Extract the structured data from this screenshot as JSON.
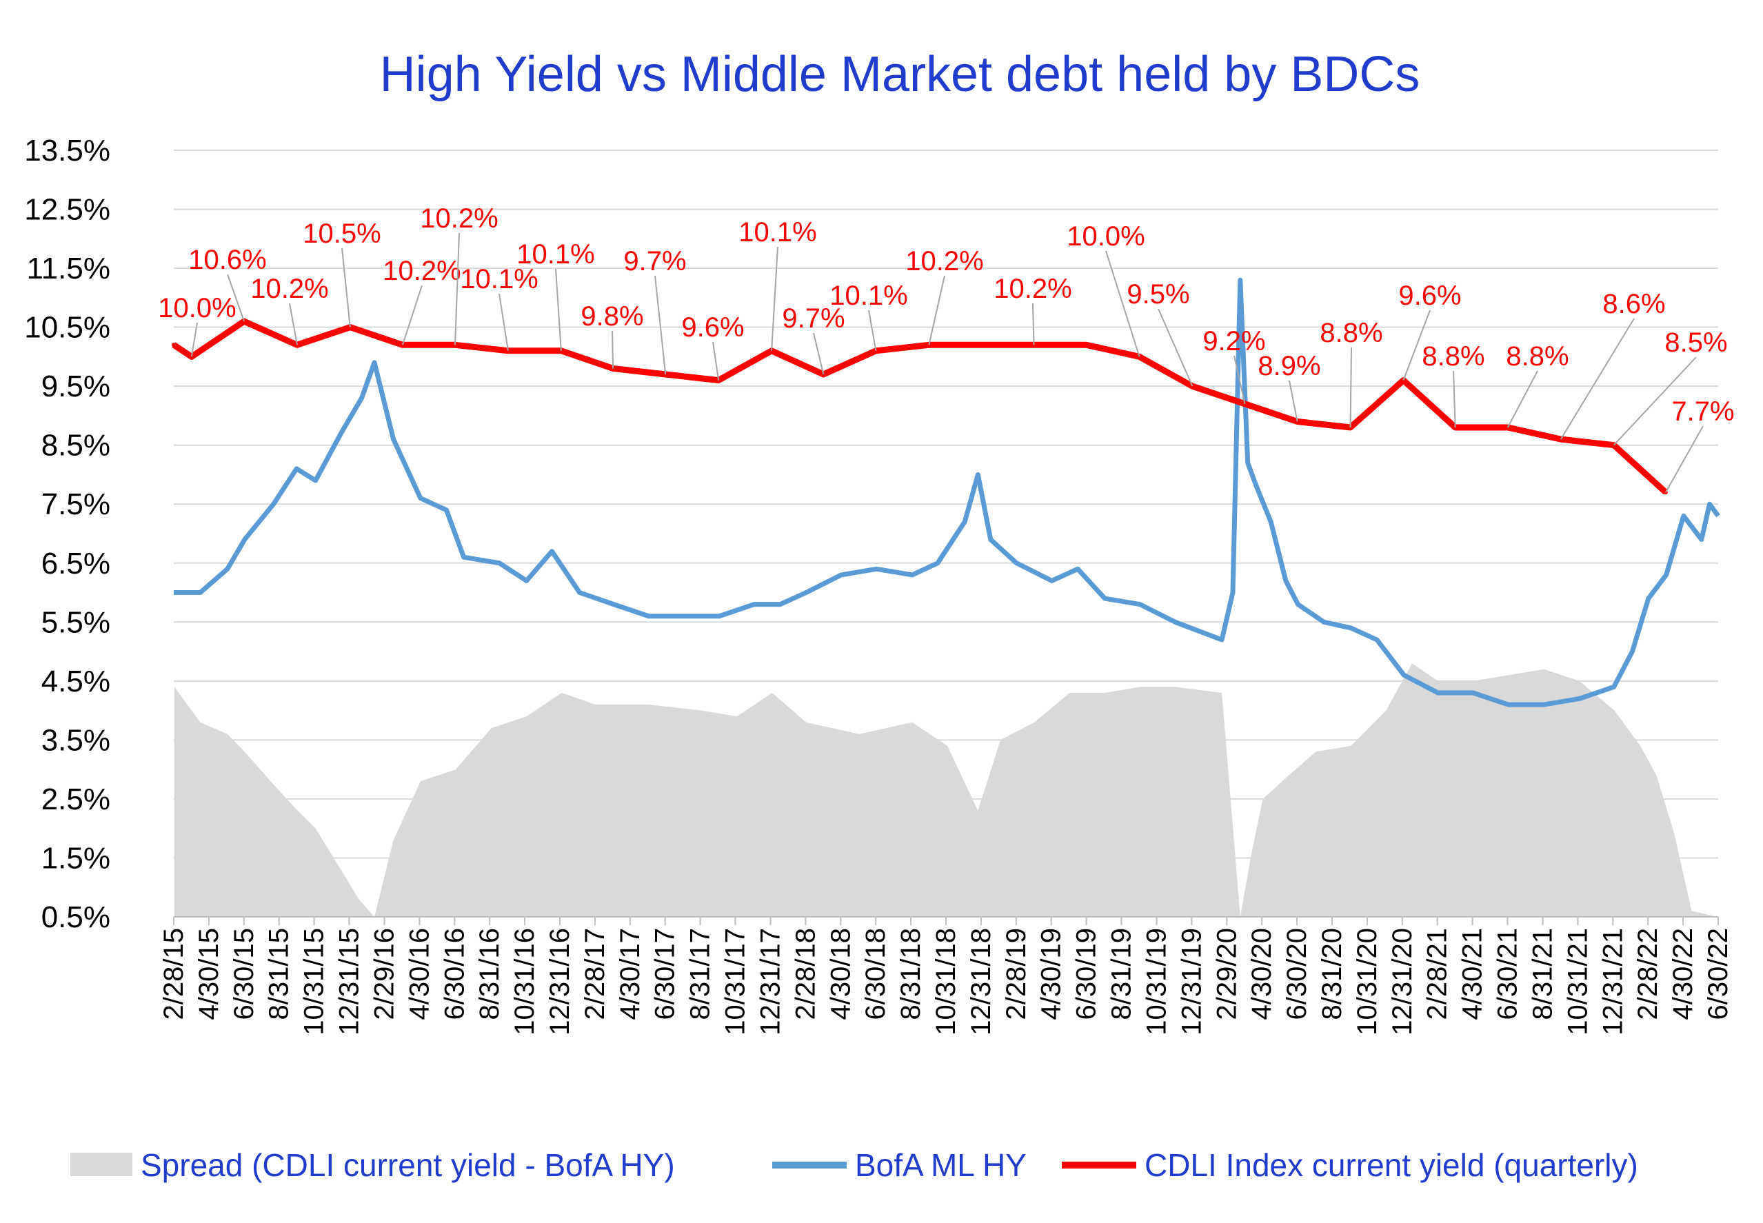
{
  "chart_data": {
    "type": "line",
    "title": "High Yield  vs  Middle Market debt held by BDCs",
    "xlabel": "",
    "ylabel": "",
    "ylim": [
      0.5,
      13.5
    ],
    "grid": true,
    "legend_position": "bottom",
    "y_ticks": [
      "13.5%",
      "12.5%",
      "11.5%",
      "10.5%",
      "9.5%",
      "8.5%",
      "7.5%",
      "6.5%",
      "5.5%",
      "4.5%",
      "3.5%",
      "2.5%",
      "1.5%",
      "0.5%"
    ],
    "x_ticks": [
      "2/28/15",
      "4/30/15",
      "6/30/15",
      "8/31/15",
      "10/31/15",
      "12/31/15",
      "2/29/16",
      "4/30/16",
      "6/30/16",
      "8/31/16",
      "10/31/16",
      "12/31/16",
      "2/28/17",
      "4/30/17",
      "6/30/17",
      "8/31/17",
      "10/31/17",
      "12/31/17",
      "2/28/18",
      "4/30/18",
      "6/30/18",
      "8/31/18",
      "10/31/18",
      "12/31/18",
      "2/28/19",
      "4/30/19",
      "6/30/19",
      "8/31/19",
      "10/31/19",
      "12/31/19",
      "2/29/20",
      "4/30/20",
      "6/30/20",
      "8/31/20",
      "10/31/20",
      "12/31/20",
      "2/28/21",
      "4/30/21",
      "6/30/21",
      "8/31/21",
      "10/31/21",
      "12/31/21",
      "2/28/22",
      "4/30/22",
      "6/30/22"
    ],
    "x_range": [
      "2015-02-28",
      "2022-06-30"
    ],
    "series": [
      {
        "name": "Spread (CDLI current yield - BofA HY)",
        "style": "area",
        "color": "#d9d9d9",
        "x": [
          "2015-03-01",
          "2015-04-15",
          "2015-06-01",
          "2015-07-01",
          "2015-08-15",
          "2015-10-01",
          "2015-11-01",
          "2015-12-15",
          "2016-01-15",
          "2016-02-11",
          "2016-03-15",
          "2016-05-01",
          "2016-07-01",
          "2016-09-01",
          "2016-11-01",
          "2017-01-01",
          "2017-03-01",
          "2017-06-01",
          "2017-09-01",
          "2017-11-01",
          "2018-01-01",
          "2018-03-01",
          "2018-06-01",
          "2018-09-01",
          "2018-11-01",
          "2018-12-24",
          "2019-02-01",
          "2019-04-01",
          "2019-06-01",
          "2019-08-01",
          "2019-10-01",
          "2019-12-01",
          "2020-02-20",
          "2020-03-23",
          "2020-04-10",
          "2020-05-01",
          "2020-06-15",
          "2020-08-01",
          "2020-10-01",
          "2020-12-01",
          "2021-01-15",
          "2021-03-01",
          "2021-05-01",
          "2021-07-01",
          "2021-09-01",
          "2021-11-01",
          "2022-01-01",
          "2022-02-15",
          "2022-03-15",
          "2022-04-15",
          "2022-05-15",
          "2022-06-30"
        ],
        "values": [
          4.4,
          3.8,
          3.6,
          3.3,
          2.8,
          2.3,
          2.0,
          1.3,
          0.8,
          0.5,
          1.8,
          2.8,
          3.0,
          3.7,
          3.9,
          4.3,
          4.1,
          4.1,
          4.0,
          3.9,
          4.3,
          3.8,
          3.6,
          3.8,
          3.4,
          2.3,
          3.5,
          3.8,
          4.3,
          4.3,
          4.4,
          4.4,
          4.3,
          0.5,
          1.5,
          2.5,
          2.9,
          3.3,
          3.4,
          4.0,
          4.8,
          4.5,
          4.5,
          4.6,
          4.7,
          4.5,
          4.0,
          3.4,
          2.9,
          1.9,
          0.6,
          0.5
        ]
      },
      {
        "name": "BofA ML HY",
        "style": "line",
        "color": "#5b9bd5",
        "x": [
          "2015-02-28",
          "2015-04-15",
          "2015-06-01",
          "2015-07-01",
          "2015-08-20",
          "2015-09-29",
          "2015-11-01",
          "2015-12-15",
          "2016-01-20",
          "2016-02-11",
          "2016-03-15",
          "2016-05-01",
          "2016-06-15",
          "2016-07-15",
          "2016-09-15",
          "2016-11-01",
          "2016-12-15",
          "2017-02-01",
          "2017-04-01",
          "2017-06-01",
          "2017-08-01",
          "2017-10-01",
          "2017-12-01",
          "2018-01-15",
          "2018-03-01",
          "2018-05-01",
          "2018-07-01",
          "2018-09-01",
          "2018-10-15",
          "2018-12-01",
          "2018-12-24",
          "2019-01-15",
          "2019-03-01",
          "2019-05-01",
          "2019-06-15",
          "2019-08-01",
          "2019-10-01",
          "2019-12-01",
          "2020-02-20",
          "2020-03-10",
          "2020-03-23",
          "2020-04-05",
          "2020-04-20",
          "2020-05-15",
          "2020-06-10",
          "2020-07-01",
          "2020-08-15",
          "2020-10-01",
          "2020-11-15",
          "2021-01-01",
          "2021-03-01",
          "2021-05-01",
          "2021-07-01",
          "2021-09-01",
          "2021-11-01",
          "2021-12-31",
          "2022-02-01",
          "2022-03-01",
          "2022-04-01",
          "2022-05-01",
          "2022-06-01",
          "2022-06-15",
          "2022-06-30"
        ],
        "values": [
          6.0,
          6.0,
          6.4,
          6.9,
          7.5,
          8.1,
          7.9,
          8.7,
          9.3,
          9.9,
          8.6,
          7.6,
          7.4,
          6.6,
          6.5,
          6.2,
          6.7,
          6.0,
          5.8,
          5.6,
          5.6,
          5.6,
          5.8,
          5.8,
          6.0,
          6.3,
          6.4,
          6.3,
          6.5,
          7.2,
          8.0,
          6.9,
          6.5,
          6.2,
          6.4,
          5.9,
          5.8,
          5.5,
          5.2,
          6.0,
          11.3,
          8.2,
          7.8,
          7.2,
          6.2,
          5.8,
          5.5,
          5.4,
          5.2,
          4.6,
          4.3,
          4.3,
          4.1,
          4.1,
          4.2,
          4.4,
          5.0,
          5.9,
          6.3,
          7.3,
          6.9,
          7.5,
          7.3
        ]
      },
      {
        "name": "CDLI Index current yield (quarterly)",
        "style": "line",
        "color": "#ff0000",
        "x": [
          "2015-02-28",
          "2015-03-31",
          "2015-06-30",
          "2015-09-30",
          "2015-12-31",
          "2016-03-31",
          "2016-06-30",
          "2016-09-30",
          "2016-12-31",
          "2017-03-31",
          "2017-06-30",
          "2017-09-30",
          "2017-12-31",
          "2018-03-31",
          "2018-06-30",
          "2018-09-30",
          "2018-12-31",
          "2019-03-31",
          "2019-06-30",
          "2019-09-30",
          "2019-12-31",
          "2020-03-31",
          "2020-06-30",
          "2020-09-30",
          "2020-12-31",
          "2021-03-31",
          "2021-06-30",
          "2021-09-30",
          "2021-12-31",
          "2022-03-31"
        ],
        "values": [
          10.2,
          10.0,
          10.6,
          10.2,
          10.5,
          10.2,
          10.2,
          10.1,
          10.1,
          9.8,
          9.7,
          9.6,
          10.1,
          9.7,
          10.1,
          10.2,
          10.2,
          10.2,
          10.2,
          10.0,
          9.5,
          9.2,
          8.9,
          8.8,
          9.6,
          8.8,
          8.8,
          8.6,
          8.5,
          7.7
        ]
      }
    ]
  },
  "data_labels": [
    "10.0%",
    "10.6%",
    "10.2%",
    "10.5%",
    "10.2%",
    "10.2%",
    "10.1%",
    "10.1%",
    "9.8%",
    "9.7%",
    "9.6%",
    "10.1%",
    "9.7%",
    "10.1%",
    "10.2%",
    "10.2%",
    "10.0%",
    "9.5%",
    "9.2%",
    "8.9%",
    "8.8%",
    "9.6%",
    "8.8%",
    "8.8%",
    "8.6%",
    "8.5%",
    "7.7%"
  ],
  "legend": {
    "spread": "Spread (CDLI current yield - BofA HY)",
    "hy": "BofA ML HY",
    "cdli": "CDLI Index current yield (quarterly)"
  },
  "colors": {
    "title": "#1f3ccc",
    "grid": "#d9d9d9",
    "spread": "#d9d9d9",
    "hy": "#5b9bd5",
    "cdli": "#ff0000",
    "labels": "#ff0000"
  }
}
